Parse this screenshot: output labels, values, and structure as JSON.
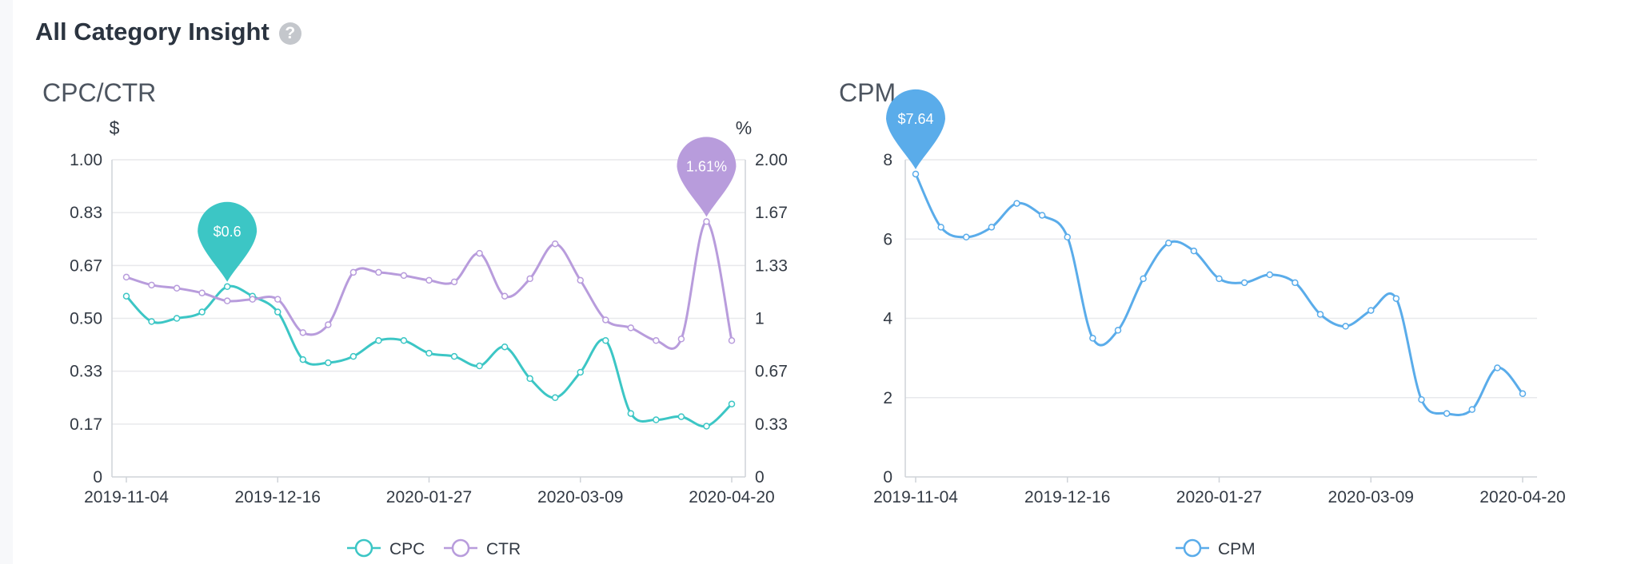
{
  "page": {
    "title": "All Category Insight",
    "help_icon": "question-circle-icon"
  },
  "colors": {
    "cpc": "#3cc6c5",
    "ctr": "#b89cdc",
    "cpm": "#5aacea"
  },
  "chart_data": [
    {
      "id": "cpc_ctr",
      "type": "line",
      "title": "CPC/CTR",
      "x": [
        "2019-11-04",
        "2019-11-11",
        "2019-11-18",
        "2019-11-25",
        "2019-12-02",
        "2019-12-09",
        "2019-12-16",
        "2019-12-23",
        "2019-12-30",
        "2020-01-06",
        "2020-01-13",
        "2020-01-20",
        "2020-01-27",
        "2020-02-03",
        "2020-02-10",
        "2020-02-17",
        "2020-02-24",
        "2020-03-02",
        "2020-03-09",
        "2020-03-16",
        "2020-03-23",
        "2020-03-30",
        "2020-04-06",
        "2020-04-13",
        "2020-04-20"
      ],
      "x_tick_labels": [
        "2019-11-04",
        "2019-12-16",
        "2020-01-27",
        "2020-03-09",
        "2020-04-20"
      ],
      "y_left": {
        "unit": "$",
        "range": [
          0,
          1
        ],
        "tick_labels": [
          "0",
          "0.17",
          "0.33",
          "0.50",
          "0.67",
          "0.83",
          "1.00"
        ]
      },
      "y_right": {
        "unit": "%",
        "range": [
          0,
          2
        ],
        "tick_labels": [
          "0",
          "0.33",
          "0.67",
          "1",
          "1.33",
          "1.67",
          "2.00"
        ]
      },
      "series": [
        {
          "name": "CPC",
          "axis": "left",
          "values": [
            0.57,
            0.49,
            0.5,
            0.52,
            0.6,
            0.57,
            0.52,
            0.37,
            0.36,
            0.38,
            0.43,
            0.43,
            0.39,
            0.38,
            0.35,
            0.41,
            0.31,
            0.25,
            0.33,
            0.43,
            0.2,
            0.18,
            0.19,
            0.16,
            0.23
          ]
        },
        {
          "name": "CTR",
          "axis": "right",
          "values": [
            1.26,
            1.21,
            1.19,
            1.16,
            1.11,
            1.12,
            1.12,
            0.91,
            0.96,
            1.29,
            1.29,
            1.27,
            1.24,
            1.23,
            1.41,
            1.14,
            1.25,
            1.47,
            1.24,
            0.99,
            0.94,
            0.86,
            0.87,
            1.61,
            0.86
          ]
        }
      ],
      "markers": [
        {
          "series": "CPC",
          "index": 4,
          "label": "$0.6"
        },
        {
          "series": "CTR",
          "index": 23,
          "label": "1.61%"
        }
      ],
      "legend": {
        "position": "bottom-center",
        "items": [
          "CPC",
          "CTR"
        ]
      },
      "grid": true
    },
    {
      "id": "cpm",
      "type": "line",
      "title": "CPM",
      "x": [
        "2019-11-04",
        "2019-11-11",
        "2019-11-18",
        "2019-11-25",
        "2019-12-02",
        "2019-12-09",
        "2019-12-16",
        "2019-12-23",
        "2019-12-30",
        "2020-01-06",
        "2020-01-13",
        "2020-01-20",
        "2020-01-27",
        "2020-02-03",
        "2020-02-10",
        "2020-02-17",
        "2020-02-24",
        "2020-03-02",
        "2020-03-09",
        "2020-03-16",
        "2020-03-23",
        "2020-03-30",
        "2020-04-06",
        "2020-04-13",
        "2020-04-20"
      ],
      "x_tick_labels": [
        "2019-11-04",
        "2019-12-16",
        "2020-01-27",
        "2020-03-09",
        "2020-04-20"
      ],
      "y": {
        "range": [
          0,
          8
        ],
        "tick_labels": [
          "0",
          "2",
          "4",
          "6",
          "8"
        ]
      },
      "series": [
        {
          "name": "CPM",
          "axis": "left",
          "values": [
            7.64,
            6.3,
            6.05,
            6.3,
            6.9,
            6.6,
            6.05,
            3.5,
            3.7,
            5.0,
            5.9,
            5.7,
            5.0,
            4.9,
            5.1,
            4.9,
            4.1,
            3.8,
            4.2,
            4.5,
            1.95,
            1.6,
            1.7,
            2.75,
            2.1
          ]
        }
      ],
      "markers": [
        {
          "series": "CPM",
          "index": 0,
          "label": "$7.64"
        }
      ],
      "legend": {
        "position": "bottom-center",
        "items": [
          "CPM"
        ]
      },
      "grid": true
    }
  ]
}
